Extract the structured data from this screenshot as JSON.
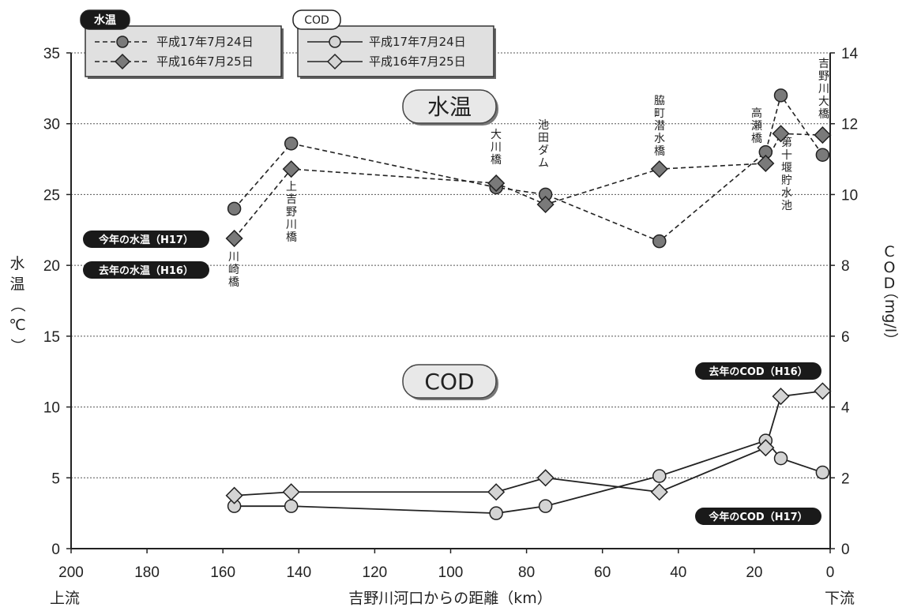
{
  "chart_data": {
    "type": "line",
    "xlabel": "吉野川河口からの距離（km）",
    "x_left_end_label": "上流",
    "x_right_end_label": "下流",
    "ylabel_left": "水温（℃）",
    "ylabel_right": "COD（mg/l）",
    "xlim": [
      200,
      0
    ],
    "ylim_left": [
      0,
      35
    ],
    "ylim_right": [
      0,
      14
    ],
    "x_ticks": [
      200,
      180,
      160,
      140,
      120,
      100,
      80,
      60,
      40,
      20,
      0
    ],
    "y_left_ticks": [
      0,
      5,
      10,
      15,
      20,
      25,
      30,
      35
    ],
    "y_right_ticks": [
      0,
      2,
      4,
      6,
      8,
      10,
      12,
      14
    ],
    "gridlines": "horizontal dotted",
    "section_labels": {
      "water_temp": "水温",
      "cod": "COD"
    },
    "legend_groups": [
      {
        "title": "水温",
        "entries": [
          "平成17年7月24日",
          "平成16年7月25日"
        ]
      },
      {
        "title": "COD",
        "entries": [
          "平成17年7月24日",
          "平成16年7月25日"
        ]
      }
    ],
    "series": [
      {
        "name": "平成17年7月24日",
        "group": "水温",
        "axis": "left",
        "line": "dashed",
        "marker": "circle",
        "fill": "#7a7a7a",
        "x": [
          157,
          142,
          88,
          75,
          45,
          17,
          13,
          2
        ],
        "y": [
          24.0,
          28.6,
          25.5,
          25.0,
          21.7,
          28.0,
          32.0,
          27.8
        ]
      },
      {
        "name": "平成16年7月25日",
        "group": "水温",
        "axis": "left",
        "line": "dashed",
        "marker": "diamond",
        "fill": "#7a7a7a",
        "x": [
          157,
          142,
          88,
          75,
          45,
          17,
          13,
          2
        ],
        "y": [
          21.9,
          26.8,
          25.8,
          24.3,
          26.8,
          27.2,
          29.3,
          29.2
        ]
      },
      {
        "name": "平成17年7月24日",
        "group": "COD",
        "axis": "right",
        "line": "solid",
        "marker": "circle",
        "fill": "#d4d4d4",
        "x": [
          157,
          142,
          88,
          75,
          45,
          17,
          13,
          2
        ],
        "y": [
          1.2,
          1.2,
          1.0,
          1.2,
          2.05,
          3.05,
          2.55,
          2.15
        ]
      },
      {
        "name": "平成16年7月25日",
        "group": "COD",
        "axis": "right",
        "line": "solid",
        "marker": "diamond",
        "fill": "#d4d4d4",
        "x": [
          157,
          142,
          88,
          75,
          45,
          17,
          13,
          2
        ],
        "y": [
          1.5,
          1.6,
          1.6,
          2.0,
          1.6,
          2.85,
          4.3,
          4.45
        ]
      }
    ],
    "location_labels": [
      {
        "text": "川崎橋",
        "x": 157
      },
      {
        "text": "上吉野川橋",
        "x": 142
      },
      {
        "text": "大川橋",
        "x": 88
      },
      {
        "text": "池田ダム",
        "x": 75
      },
      {
        "text": "脇町潜水橋",
        "x": 45
      },
      {
        "text": "高瀬橋",
        "x": 17
      },
      {
        "text": "第十堰貯水池",
        "x": 13
      },
      {
        "text": "吉野川大橋",
        "x": 2
      }
    ],
    "callouts": [
      {
        "text": "今年の水温（H17）",
        "anchor": "left"
      },
      {
        "text": "去年の水温（H16）",
        "anchor": "left"
      },
      {
        "text": "去年のCOD（H16）",
        "anchor": "right"
      },
      {
        "text": "今年のCOD（H17）",
        "anchor": "right"
      }
    ]
  }
}
